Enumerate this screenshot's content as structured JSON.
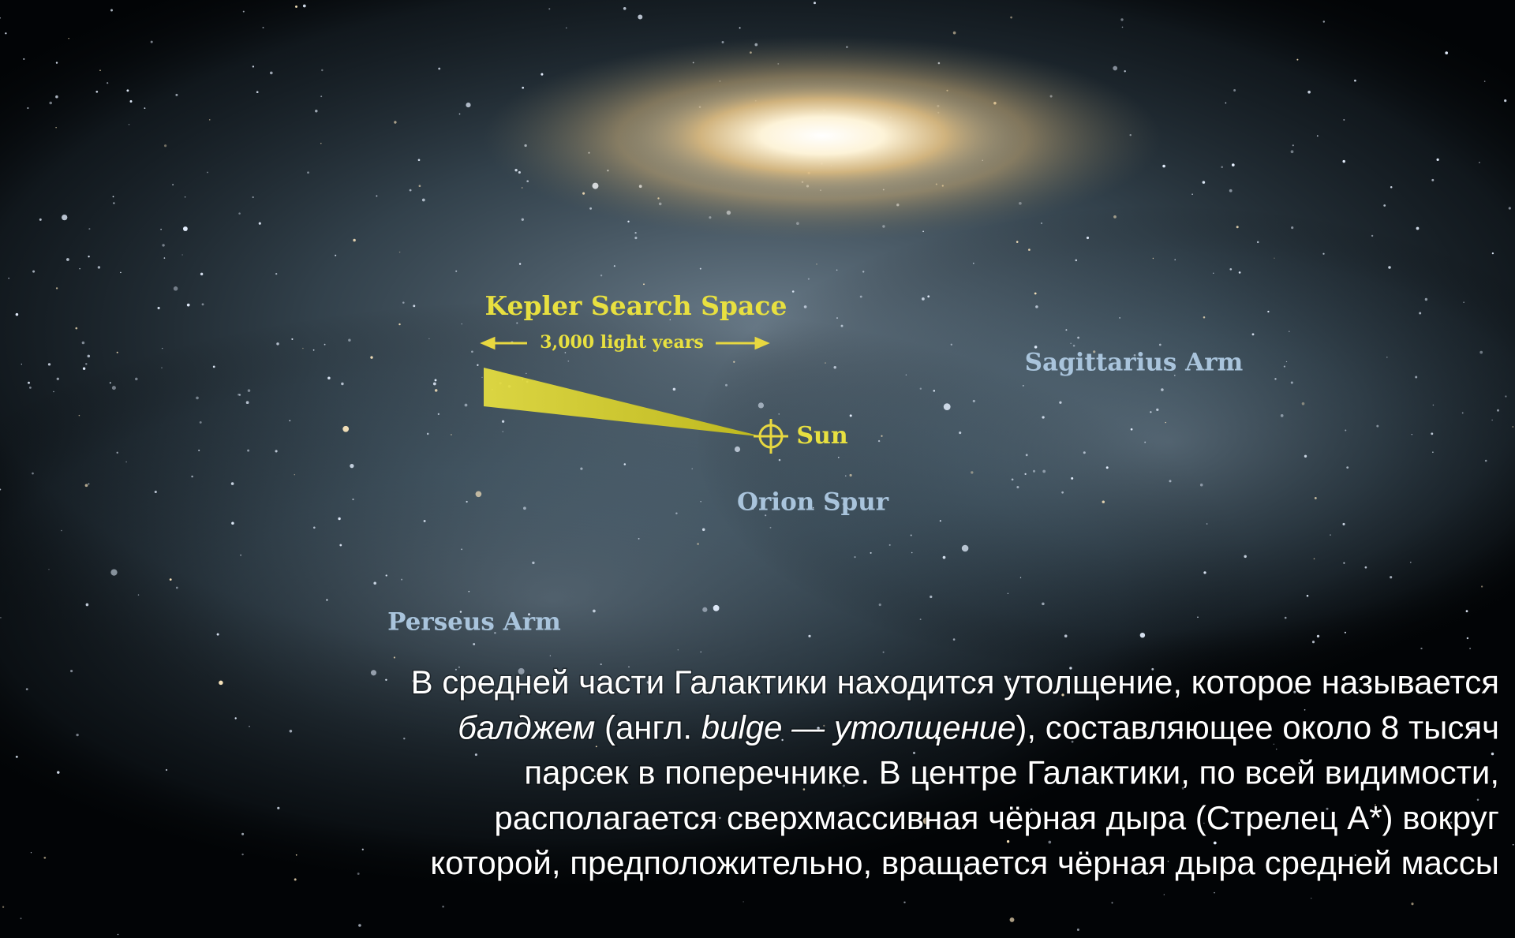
{
  "labels": {
    "kepler_title": "Kepler Search Space",
    "kepler_span": "3,000 light years",
    "sagittarius": "Sagittarius Arm",
    "sun": "Sun",
    "orion": "Orion Spur",
    "perseus": "Perseus Arm"
  },
  "caption": {
    "lines": [
      [
        "В средней части Галактики находится утолщение, которое называется"
      ],
      [
        "балджем",
        " (англ. ",
        "bulge — утолщение",
        "), составляющее около 8 тысяч"
      ],
      [
        "парсек в поперечнике. В центре Галактики, по всей видимости,"
      ],
      [
        "располагается сверхмассивная чёрная дыра (Стрелец А*) вокруг"
      ],
      [
        "которой, предположительно, вращается чёрная дыра средней массы"
      ]
    ]
  }
}
